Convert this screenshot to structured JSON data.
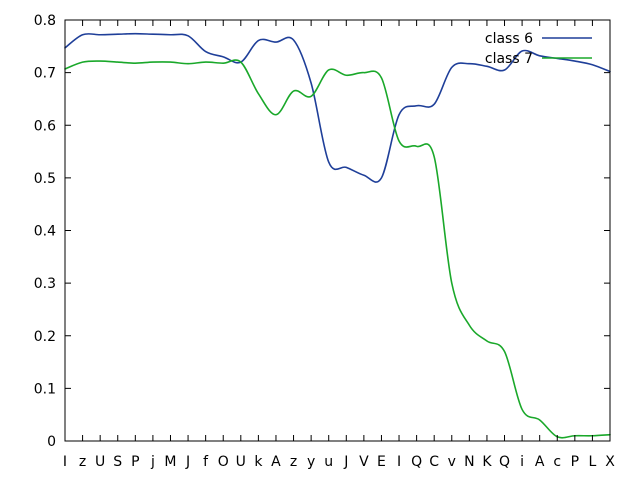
{
  "chart_data": {
    "type": "line",
    "title": "",
    "xlabel": "",
    "ylabel": "",
    "categories": [
      "I",
      "z",
      "U",
      "S",
      "P",
      "j",
      "M",
      "J",
      "f",
      "O",
      "U",
      "k",
      "A",
      "z",
      "y",
      "u",
      "J",
      "V",
      "E",
      "I",
      "Q",
      "C",
      "v",
      "N",
      "K",
      "Q",
      "i",
      "A",
      "c",
      "P",
      "L",
      "X"
    ],
    "ylim": [
      0,
      0.8
    ],
    "yticks": [
      0,
      0.1,
      0.2,
      0.3,
      0.4,
      0.5,
      0.6,
      0.7,
      0.8
    ],
    "ytick_labels": [
      "0",
      "0.1",
      "0.2",
      "0.3",
      "0.4",
      "0.5",
      "0.6",
      "0.7",
      "0.8"
    ],
    "grid": false,
    "legend_position": "top-right",
    "series": [
      {
        "name": "class 6",
        "color": "#1f3f99",
        "values": [
          0.747,
          0.772,
          0.772,
          0.773,
          0.774,
          0.773,
          0.772,
          0.77,
          0.74,
          0.73,
          0.72,
          0.761,
          0.758,
          0.762,
          0.68,
          0.53,
          0.52,
          0.505,
          0.5,
          0.62,
          0.637,
          0.64,
          0.71,
          0.717,
          0.712,
          0.705,
          0.741,
          0.732,
          0.727,
          0.722,
          0.715,
          0.702
        ]
      },
      {
        "name": "class 7",
        "color": "#1aa82a",
        "values": [
          0.707,
          0.72,
          0.722,
          0.72,
          0.718,
          0.72,
          0.72,
          0.717,
          0.72,
          0.718,
          0.72,
          0.66,
          0.62,
          0.665,
          0.655,
          0.705,
          0.695,
          0.7,
          0.69,
          0.57,
          0.56,
          0.54,
          0.3,
          0.22,
          0.19,
          0.17,
          0.06,
          0.04,
          0.008,
          0.01,
          0.01,
          0.012
        ]
      }
    ]
  }
}
